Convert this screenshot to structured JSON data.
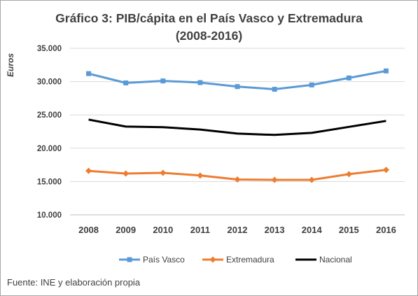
{
  "chart_data": {
    "type": "line",
    "title_line1": "Gráfico 3: PIB/cápita en el País Vasco y Extremadura",
    "title_line2": "(2008-2016)",
    "ylabel": "Euros",
    "xlabel": "",
    "ylim": [
      10000,
      35000
    ],
    "yticks": [
      10000,
      15000,
      20000,
      25000,
      30000,
      35000
    ],
    "ytick_labels": [
      "10.000",
      "15.000",
      "20.000",
      "25.000",
      "30.000",
      "35.000"
    ],
    "categories": [
      "2008",
      "2009",
      "2010",
      "2011",
      "2012",
      "2013",
      "2014",
      "2015",
      "2016"
    ],
    "grid": true,
    "legend_position": "bottom",
    "series": [
      {
        "name": "País Vasco",
        "color": "#5b9bd5",
        "marker": "square",
        "values": [
          31200,
          29800,
          30100,
          29850,
          29250,
          28850,
          29500,
          30550,
          31600
        ]
      },
      {
        "name": "Extremadura",
        "color": "#ed7d31",
        "marker": "diamond",
        "values": [
          16600,
          16200,
          16300,
          15900,
          15300,
          15250,
          15250,
          16100,
          16750
        ]
      },
      {
        "name": "Nacional",
        "color": "#000000",
        "marker": "none",
        "values": [
          24300,
          23250,
          23150,
          22800,
          22200,
          22000,
          22300,
          23200,
          24100
        ]
      }
    ]
  },
  "footer": "Fuente: INE y elaboración propia"
}
